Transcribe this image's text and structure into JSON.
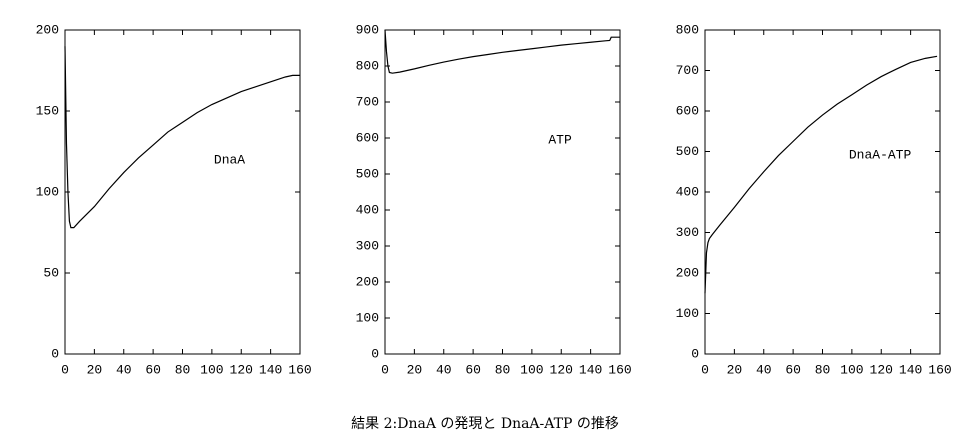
{
  "caption": "結果 2:DnaA の発現と DnaA-ATP の推移",
  "chart_data": [
    {
      "type": "line",
      "x": [
        0,
        1,
        2,
        3,
        4,
        6,
        10,
        20,
        30,
        40,
        50,
        60,
        70,
        80,
        90,
        100,
        110,
        120,
        130,
        140,
        150,
        155,
        160
      ],
      "series": [
        {
          "name": "DnaA",
          "color": "#000000",
          "values": [
            190,
            130,
            100,
            82,
            78,
            78,
            82,
            91,
            102,
            112,
            121,
            129,
            137,
            143,
            149,
            154,
            158,
            162,
            165,
            168,
            171,
            172,
            172
          ]
        }
      ],
      "xlim": [
        0,
        160
      ],
      "ylim": [
        0,
        200
      ],
      "xticks": [
        0,
        20,
        40,
        60,
        80,
        100,
        120,
        140,
        160
      ],
      "yticks": [
        0,
        50,
        100,
        150,
        200
      ]
    },
    {
      "type": "line",
      "x": [
        0,
        1,
        2,
        3,
        5,
        10,
        20,
        30,
        40,
        50,
        60,
        70,
        80,
        90,
        100,
        110,
        120,
        130,
        140,
        150,
        153,
        154,
        160
      ],
      "series": [
        {
          "name": "ATP",
          "color": "#000000",
          "values": [
            900,
            840,
            800,
            782,
            780,
            783,
            792,
            802,
            811,
            819,
            826,
            832,
            838,
            843,
            848,
            853,
            858,
            862,
            866,
            870,
            871,
            880,
            880
          ]
        }
      ],
      "xlim": [
        0,
        160
      ],
      "ylim": [
        0,
        900
      ],
      "xticks": [
        0,
        20,
        40,
        60,
        80,
        100,
        120,
        140,
        160
      ],
      "yticks": [
        0,
        100,
        200,
        300,
        400,
        500,
        600,
        700,
        800,
        900
      ]
    },
    {
      "type": "line",
      "x": [
        0,
        1,
        2,
        3,
        5,
        10,
        20,
        30,
        40,
        50,
        60,
        70,
        80,
        90,
        100,
        110,
        120,
        130,
        140,
        150,
        158
      ],
      "series": [
        {
          "name": "DnaA-ATP",
          "color": "#000000",
          "values": [
            150,
            250,
            275,
            285,
            295,
            318,
            362,
            408,
            450,
            490,
            525,
            560,
            590,
            617,
            640,
            664,
            685,
            703,
            720,
            730,
            735
          ]
        }
      ],
      "xlim": [
        0,
        160
      ],
      "ylim": [
        0,
        800
      ],
      "xticks": [
        0,
        20,
        40,
        60,
        80,
        100,
        120,
        140,
        160
      ],
      "yticks": [
        0,
        100,
        200,
        300,
        400,
        500,
        600,
        700,
        800
      ]
    }
  ]
}
